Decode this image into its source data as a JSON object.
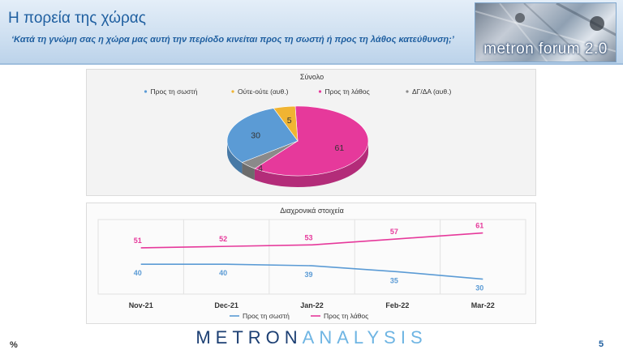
{
  "header": {
    "title": "Η πορεία της χώρας",
    "subtitle": "‘Κατά τη γνώμη σας η χώρα μας αυτή την περίοδο κινείται προς τη σωστή ή προς τη λάθος κατεύθυνση;’",
    "brand": "metron forum 2.0"
  },
  "footer": {
    "unit": "%",
    "logo_part1": "METRON",
    "logo_part2": "ANALYSIS",
    "page_number": "5"
  },
  "colors": {
    "right_direction": "#5b9bd5",
    "neither": "#f0b432",
    "wrong_direction": "#e6399b",
    "dk_na": "#8a8a8a"
  },
  "chart_data": [
    {
      "type": "pie",
      "title": "Σύνολο",
      "legend_position": "top",
      "slices": [
        {
          "label": "Προς τη σωστή",
          "value": 30,
          "color": "#5b9bd5"
        },
        {
          "label": "Ούτε-ούτε (αυθ.)",
          "value": 5,
          "color": "#f0b432"
        },
        {
          "label": "Προς τη λάθος",
          "value": 61,
          "color": "#e6399b"
        },
        {
          "label": "ΔΓ/ΔΑ (αυθ.)",
          "value": 4,
          "color": "#8a8a8a"
        }
      ]
    },
    {
      "type": "line",
      "title": "Διαχρονικά στοιχεία",
      "legend_position": "bottom",
      "grid": true,
      "categories": [
        "Nov-21",
        "Dec-21",
        "Jan-22",
        "Feb-22",
        "Mar-22"
      ],
      "ylim": [
        20,
        70
      ],
      "series": [
        {
          "name": "Προς τη σωστή",
          "values": [
            40,
            40,
            39,
            35,
            30
          ],
          "color": "#5b9bd5"
        },
        {
          "name": "Προς τη λάθος",
          "values": [
            51,
            52,
            53,
            57,
            61
          ],
          "color": "#e6399b"
        }
      ]
    }
  ]
}
